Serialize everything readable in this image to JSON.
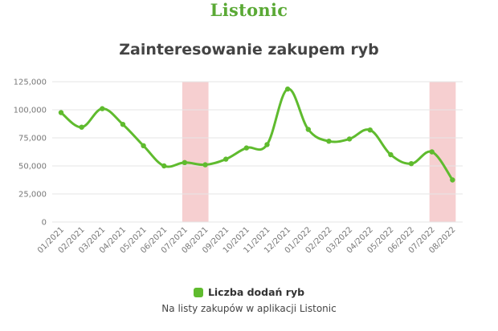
{
  "brand": "Listonic",
  "colors": {
    "brand": "#5aa935",
    "line": "#5fbb2e",
    "highlight": "#f6cfd0",
    "grid": "#e6e6e6",
    "title": "#444444"
  },
  "chart_data": {
    "type": "line",
    "title": "Zainteresowanie zakupem ryb",
    "xlabel": "",
    "ylabel": "",
    "ylim": [
      0,
      125000
    ],
    "yticks": [
      "0",
      "25,000",
      "50,000",
      "75,000",
      "100,000",
      "125,000"
    ],
    "ytick_values": [
      0,
      25000,
      50000,
      75000,
      100000,
      125000
    ],
    "categories": [
      "01/2021",
      "02/2021",
      "03/2021",
      "04/2021",
      "05/2021",
      "06/2021",
      "07/2021",
      "08/2021",
      "09/2021",
      "10/2021",
      "11/2021",
      "12/2021",
      "01/2022",
      "02/2022",
      "03/2022",
      "04/2022",
      "05/2022",
      "06/2022",
      "07/2022",
      "08/2022"
    ],
    "series": [
      {
        "name": "Liczba dodań ryb",
        "values": [
          97500,
          84500,
          101000,
          87000,
          68000,
          50000,
          53000,
          51000,
          56000,
          66000,
          69000,
          118500,
          82500,
          72000,
          74000,
          82000,
          60000,
          52000,
          62500,
          37500
        ]
      }
    ],
    "highlighted_ranges": [
      [
        "07/2021",
        "08/2021"
      ],
      [
        "07/2022",
        "08/2022"
      ]
    ],
    "grid": true,
    "legend_position": "bottom-center",
    "legend_note": "Na listy zakupów w aplikacji Listonic"
  }
}
